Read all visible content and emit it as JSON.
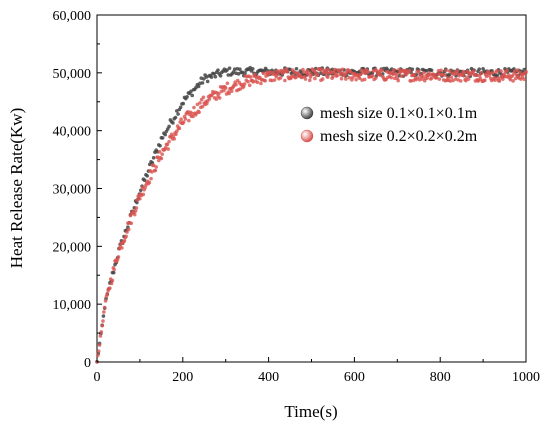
{
  "chart_data": {
    "type": "scatter",
    "title": "",
    "xlabel": "Time(s)",
    "ylabel": "Heat Release Rate(Kw)",
    "xlim": [
      0,
      1000
    ],
    "ylim": [
      0,
      60000
    ],
    "x_ticks": [
      0,
      200,
      400,
      600,
      800,
      1000
    ],
    "y_ticks": [
      0,
      10000,
      20000,
      30000,
      40000,
      50000,
      60000
    ],
    "x_tick_labels": [
      "0",
      "200",
      "400",
      "600",
      "800",
      "1000"
    ],
    "y_tick_labels": [
      "0",
      "10,000",
      "20,000",
      "30,000",
      "40,000",
      "50,000",
      "60,000"
    ],
    "grid": false,
    "legend_position": "right",
    "series": [
      {
        "name": "mesh size 0.1×0.1×0.1m",
        "color": "#444444",
        "marker": "sphere",
        "dx": 3,
        "points_key": [
          [
            0,
            0
          ],
          [
            20,
            10500
          ],
          [
            50,
            19000
          ],
          [
            100,
            29500
          ],
          [
            150,
            38500
          ],
          [
            200,
            45000
          ],
          [
            250,
            49000
          ],
          [
            300,
            50200
          ],
          [
            350,
            50200
          ],
          [
            1000,
            50000
          ]
        ],
        "noise": 700
      },
      {
        "name": "mesh size 0.2×0.2×0.2m",
        "color": "#d9534f",
        "marker": "sphere",
        "dx": 2,
        "points_key": [
          [
            0,
            0
          ],
          [
            20,
            10500
          ],
          [
            50,
            19000
          ],
          [
            100,
            28800
          ],
          [
            150,
            36000
          ],
          [
            200,
            41500
          ],
          [
            250,
            45000
          ],
          [
            300,
            47200
          ],
          [
            350,
            48600
          ],
          [
            400,
            49400
          ],
          [
            450,
            49700
          ],
          [
            1000,
            49500
          ]
        ],
        "noise": 1000
      }
    ]
  }
}
